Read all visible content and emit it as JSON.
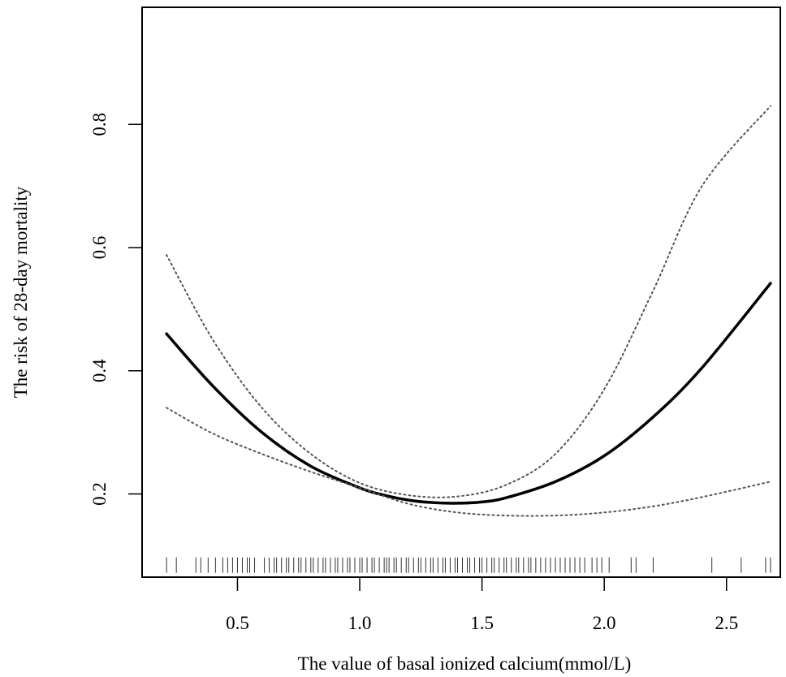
{
  "chart_data": {
    "type": "line",
    "title": "",
    "xlabel": "The value of basal ionized calcium(mmol/L)",
    "ylabel": "The risk of 28-day mortality",
    "xlim": [
      0.11,
      2.72
    ],
    "ylim": [
      0.065,
      0.99
    ],
    "x_ticks": [
      0.5,
      1.0,
      1.5,
      2.0,
      2.5
    ],
    "x_tick_labels": [
      "0.5",
      "1.0",
      "1.5",
      "2.0",
      "2.5"
    ],
    "y_ticks": [
      0.2,
      0.4,
      0.6,
      0.8
    ],
    "y_tick_labels": [
      "0.2",
      "0.4",
      "0.6",
      "0.8"
    ],
    "grid": false,
    "legend": "none",
    "series": [
      {
        "role": "estimate",
        "style": "solid",
        "color": "#000000",
        "x": [
          0.21,
          0.4,
          0.6,
          0.8,
          1.0,
          1.1,
          1.2,
          1.3,
          1.4,
          1.5,
          1.6,
          1.8,
          2.0,
          2.2,
          2.4,
          2.68
        ],
        "y": [
          0.46,
          0.375,
          0.3,
          0.245,
          0.21,
          0.198,
          0.19,
          0.186,
          0.185,
          0.187,
          0.194,
          0.22,
          0.262,
          0.325,
          0.405,
          0.542
        ]
      },
      {
        "role": "upper-ci",
        "style": "dotted",
        "color": "#555555",
        "x": [
          0.21,
          0.4,
          0.6,
          0.8,
          1.0,
          1.2,
          1.4,
          1.6,
          1.8,
          2.0,
          2.2,
          2.4,
          2.68
        ],
        "y": [
          0.588,
          0.45,
          0.34,
          0.265,
          0.218,
          0.198,
          0.196,
          0.215,
          0.265,
          0.37,
          0.53,
          0.7,
          0.83
        ]
      },
      {
        "role": "lower-ci",
        "style": "dotted",
        "color": "#555555",
        "x": [
          0.21,
          0.4,
          0.6,
          0.8,
          1.0,
          1.2,
          1.4,
          1.6,
          1.8,
          2.0,
          2.2,
          2.4,
          2.68
        ],
        "y": [
          0.34,
          0.298,
          0.265,
          0.236,
          0.21,
          0.184,
          0.17,
          0.165,
          0.165,
          0.17,
          0.18,
          0.195,
          0.22
        ]
      }
    ],
    "rug": {
      "color": "#333333",
      "values": [
        0.21,
        0.25,
        0.33,
        0.35,
        0.38,
        0.41,
        0.44,
        0.46,
        0.48,
        0.5,
        0.52,
        0.54,
        0.55,
        0.57,
        0.61,
        0.63,
        0.65,
        0.66,
        0.68,
        0.7,
        0.71,
        0.73,
        0.75,
        0.76,
        0.78,
        0.8,
        0.81,
        0.83,
        0.85,
        0.86,
        0.88,
        0.9,
        0.91,
        0.93,
        0.95,
        0.96,
        0.98,
        1.0,
        1.01,
        1.03,
        1.05,
        1.06,
        1.08,
        1.1,
        1.11,
        1.12,
        1.14,
        1.15,
        1.17,
        1.19,
        1.2,
        1.22,
        1.24,
        1.25,
        1.27,
        1.29,
        1.3,
        1.32,
        1.34,
        1.35,
        1.37,
        1.39,
        1.4,
        1.42,
        1.44,
        1.45,
        1.47,
        1.49,
        1.5,
        1.52,
        1.54,
        1.55,
        1.57,
        1.59,
        1.6,
        1.62,
        1.64,
        1.65,
        1.67,
        1.69,
        1.7,
        1.72,
        1.74,
        1.76,
        1.78,
        1.8,
        1.82,
        1.84,
        1.86,
        1.88,
        1.9,
        1.92,
        1.95,
        1.97,
        1.99,
        2.02,
        2.11,
        2.13,
        2.2,
        2.44,
        2.56,
        2.66,
        2.68
      ]
    }
  }
}
